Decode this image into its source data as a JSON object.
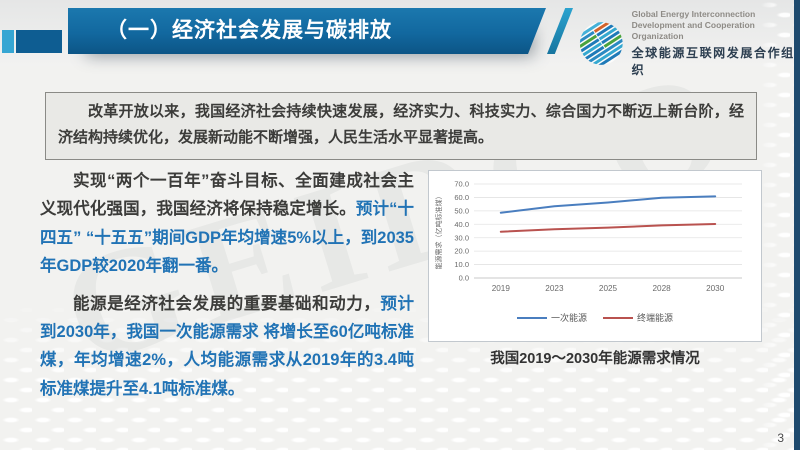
{
  "header": {
    "title": "（一）经济社会发展与碳排放",
    "logo": {
      "en_line1": "Global Energy Interconnection",
      "en_line2": "Development and Cooperation Organization",
      "zh": "全球能源互联网发展合作组织"
    }
  },
  "summary": {
    "text": "改革开放以来，我国经济社会持续快速发展，经济实力、科技实力、综合国力不断迈上新台阶，经济结构持续优化，发展新动能不断增强，人民生活水平显著提高。"
  },
  "paragraphs": [
    {
      "plain": "实现“两个一百年”奋斗目标、全面建成社会主义现代化强国，我国经济将保持稳定增长。",
      "highlight": "预计“十四五” “十五五”期间GDP年均增速5%以上，到2035年GDP较2020年翻一番。"
    },
    {
      "plain": "能源是经济社会发展的重要基础和动力，",
      "highlight": "预计到2030年，我国一次能源需求 将增长至60亿吨标准煤，年均增速2%，人均能源需求从2019年的3.4吨标准煤提升至4.1吨标准煤。"
    }
  ],
  "watermark": "GEIDCO",
  "page_number": "3",
  "colors": {
    "accent_teal": "#36a6d3",
    "header_blue": "#12689f",
    "navy_square": "#0e5d92",
    "right_strip_navy": "#1e4a6e",
    "highlight_text_blue": "#2173b5",
    "summary_box_bg": "#e9e9e6"
  },
  "chart_data": {
    "type": "line",
    "title": "我国2019～2030年能源需求情况",
    "x": [
      "2019",
      "2023",
      "2025",
      "2028",
      "2030"
    ],
    "series": [
      {
        "name": "一次能源",
        "color": "#4a7ebf",
        "values": [
          48.6,
          53.5,
          56.2,
          59.8,
          60.8
        ]
      },
      {
        "name": "终端能源",
        "color": "#b9524f",
        "values": [
          34.5,
          36.3,
          37.5,
          39.2,
          40.2
        ]
      }
    ],
    "xlabel": "",
    "ylabel": "能源需求（亿吨标准煤）",
    "ylim": [
      0,
      70
    ],
    "ytick_step": 10,
    "grid": true,
    "legend_position": "bottom"
  }
}
